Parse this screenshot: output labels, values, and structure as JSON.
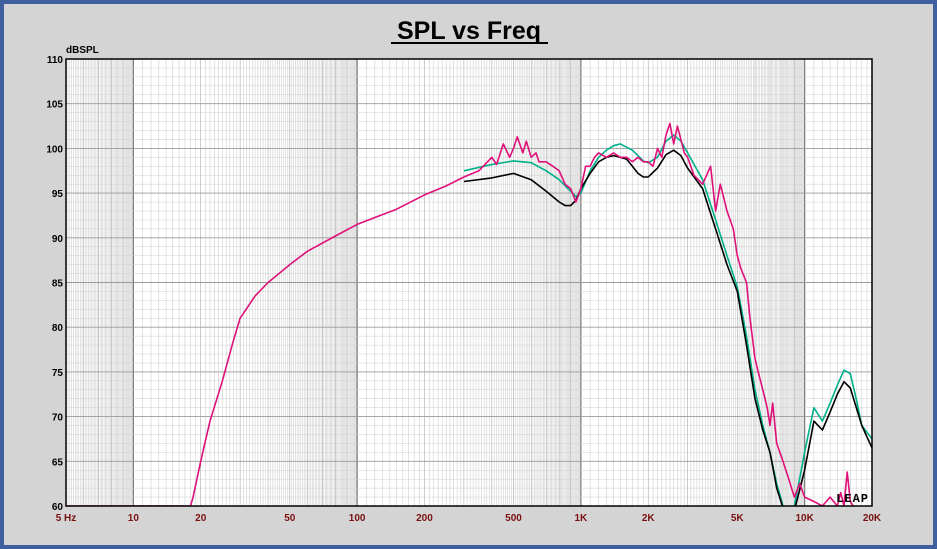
{
  "chart_data": {
    "type": "line",
    "title": "SPL vs Freq",
    "ylabel": "dBSPL",
    "xlabel": "",
    "x_scale": "log",
    "xlim": [
      5,
      20000
    ],
    "ylim": [
      60,
      110
    ],
    "grid": true,
    "yticks": [
      60,
      65,
      70,
      75,
      80,
      85,
      90,
      95,
      100,
      105,
      110
    ],
    "xticks": [
      {
        "value": 5,
        "label": "5  Hz"
      },
      {
        "value": 10,
        "label": "10"
      },
      {
        "value": 20,
        "label": "20"
      },
      {
        "value": 50,
        "label": "50"
      },
      {
        "value": 100,
        "label": "100"
      },
      {
        "value": 200,
        "label": "200"
      },
      {
        "value": 500,
        "label": "500"
      },
      {
        "value": 1000,
        "label": "1K"
      },
      {
        "value": 2000,
        "label": "2K"
      },
      {
        "value": 5000,
        "label": "5K"
      },
      {
        "value": 10000,
        "label": "10K"
      },
      {
        "value": 20000,
        "label": "20K"
      }
    ],
    "series": [
      {
        "color": "#00b08a",
        "x": [
          300,
          400,
          500,
          600,
          700,
          800,
          900,
          950,
          1000,
          1100,
          1200,
          1300,
          1400,
          1500,
          1700,
          1900,
          2000,
          2200,
          2400,
          2600,
          2800,
          3000,
          3500,
          4000,
          4500,
          5000,
          5500,
          6000,
          6500,
          7000,
          7500,
          8000,
          8500,
          9000,
          10000,
          11000,
          12000,
          13000,
          14000,
          15000,
          16000,
          17000,
          18000,
          20000
        ],
        "y": [
          97.5,
          98.2,
          98.6,
          98.4,
          97.5,
          96.5,
          95.2,
          94.6,
          95.0,
          97.5,
          99.0,
          99.8,
          100.3,
          100.5,
          99.8,
          98.6,
          98.4,
          99.0,
          100.8,
          101.5,
          100.8,
          99.5,
          96.5,
          92.0,
          88.0,
          84.5,
          79.0,
          73.0,
          69.0,
          66.0,
          62.5,
          60.0,
          59.0,
          60.0,
          66.0,
          71.0,
          69.5,
          71.5,
          73.5,
          75.2,
          74.8,
          72.0,
          69.0,
          67.5
        ]
      },
      {
        "color": "#000000",
        "x": [
          300,
          400,
          500,
          600,
          700,
          800,
          850,
          900,
          950,
          1000,
          1100,
          1200,
          1300,
          1400,
          1500,
          1600,
          1700,
          1800,
          1900,
          2000,
          2200,
          2400,
          2600,
          2800,
          3000,
          3500,
          4000,
          4500,
          5000,
          5500,
          6000,
          6500,
          7000,
          7500,
          8000,
          8500,
          9000,
          10000,
          11000,
          12000,
          13000,
          14000,
          15000,
          16000,
          18000,
          20000
        ],
        "y": [
          96.3,
          96.7,
          97.2,
          96.5,
          95.2,
          94.0,
          93.6,
          93.6,
          94.2,
          95.5,
          97.2,
          98.5,
          99.0,
          99.2,
          99.0,
          98.8,
          98.0,
          97.2,
          96.8,
          96.8,
          97.8,
          99.3,
          99.8,
          99.2,
          97.8,
          95.5,
          91.0,
          87.0,
          84.0,
          78.0,
          72.0,
          68.5,
          66.0,
          62.0,
          59.8,
          58.5,
          59.5,
          64.0,
          69.5,
          68.5,
          70.5,
          72.5,
          73.9,
          73.2,
          69.0,
          66.5
        ]
      },
      {
        "color": "#e0107a",
        "x": [
          5,
          18,
          18.5,
          20,
          22,
          25,
          28,
          30,
          35,
          40,
          50,
          60,
          80,
          100,
          150,
          200,
          250,
          300,
          350,
          400,
          420,
          450,
          480,
          500,
          520,
          550,
          570,
          600,
          630,
          650,
          700,
          750,
          800,
          850,
          900,
          950,
          1000,
          1050,
          1100,
          1150,
          1200,
          1300,
          1400,
          1500,
          1600,
          1700,
          1800,
          1900,
          2000,
          2100,
          2200,
          2300,
          2400,
          2500,
          2600,
          2700,
          2800,
          2900,
          3000,
          3200,
          3500,
          3800,
          4000,
          4200,
          4500,
          4800,
          5000,
          5200,
          5500,
          5700,
          6000,
          6200,
          6500,
          6800,
          7000,
          7200,
          7500,
          8000,
          8500,
          9000,
          9500,
          10000,
          11000,
          12000,
          13000,
          14000,
          14500,
          15000,
          15500,
          16000,
          17000,
          20000
        ],
        "y": [
          60.0,
          60.0,
          61.0,
          65.0,
          69.5,
          74.0,
          78.5,
          81.0,
          83.5,
          85.0,
          87.0,
          88.5,
          90.2,
          91.5,
          93.2,
          94.8,
          95.8,
          96.8,
          97.5,
          99.0,
          98.2,
          100.5,
          99.0,
          100.0,
          101.3,
          99.5,
          100.8,
          99.0,
          99.5,
          98.5,
          98.5,
          98.0,
          97.5,
          96.0,
          95.5,
          94.0,
          95.5,
          98.0,
          98.0,
          99.0,
          99.5,
          99.0,
          99.5,
          99.0,
          99.0,
          98.5,
          99.0,
          98.5,
          98.5,
          98.0,
          100.0,
          99.0,
          101.5,
          102.8,
          100.5,
          102.5,
          101.0,
          99.5,
          99.0,
          97.0,
          96.0,
          98.0,
          93.0,
          96.0,
          93.0,
          91.0,
          88.0,
          86.5,
          85.0,
          81.0,
          76.5,
          75.0,
          73.0,
          71.0,
          69.0,
          71.5,
          67.0,
          65.0,
          63.0,
          61.0,
          62.5,
          61.0,
          60.5,
          60.0,
          61.0,
          60.0,
          61.5,
          60.0,
          63.8,
          60.5,
          59.5,
          59.5
        ]
      }
    ]
  },
  "logo_text": "LEAP"
}
